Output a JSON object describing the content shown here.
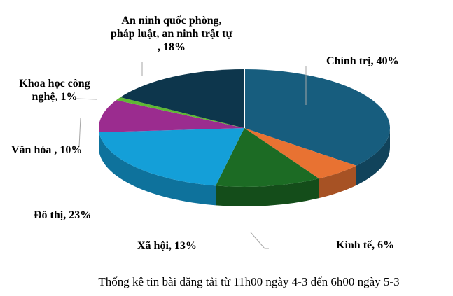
{
  "chart_data": {
    "type": "pie",
    "style": "3d",
    "title": "",
    "caption": "Thống kê tin bài đăng tải từ 11h00 ngày 4-3 đến 6h00 ngày 5-3",
    "slices": [
      {
        "label": "Chính trị, 40%",
        "name": "Chính trị",
        "value": 40,
        "color": "#175d7e",
        "label_color": "#1a5e80"
      },
      {
        "label": "Kinh tế, 6%",
        "name": "Kinh tế",
        "value": 6,
        "color": "#e87232",
        "label_color": "#e87232"
      },
      {
        "label": "Xã hội, 13%",
        "name": "Xã hội",
        "value": 13,
        "color": "#1c6b24",
        "label_color": "#1c6b24"
      },
      {
        "label": "Đô thị, 23%",
        "name": "Đô thị",
        "value": 23,
        "color": "#149fd8",
        "label_color": "#1a5e80"
      },
      {
        "label": "Văn hóa , 10%",
        "name": "Văn hóa",
        "value": 10,
        "color": "#9b2c8f",
        "label_color": "#9b2c8f"
      },
      {
        "label": "Khoa học công nghệ, 1%",
        "name": "Khoa học công nghệ",
        "value": 1,
        "color": "#5fb833",
        "label_color": "#4aa52e"
      },
      {
        "label": "An ninh quốc phòng, pháp luật, an ninh trật tự , 18%",
        "name": "An ninh quốc phòng, pháp luật, an ninh trật tự",
        "value": 18,
        "color": "#0d364c",
        "label_color": "#10364d"
      }
    ]
  }
}
